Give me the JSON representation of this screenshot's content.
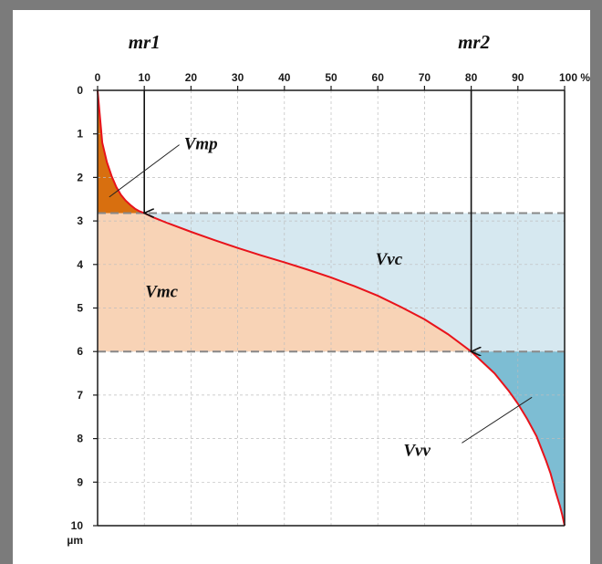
{
  "chart_data": {
    "type": "area",
    "x": [
      0,
      1,
      2,
      3,
      4,
      5,
      6,
      7,
      8,
      9,
      10,
      12,
      15,
      20,
      25,
      30,
      35,
      40,
      45,
      50,
      55,
      60,
      65,
      70,
      75,
      80,
      85,
      88,
      90,
      92,
      94,
      96,
      97,
      98,
      99,
      99.5,
      100
    ],
    "y": [
      0,
      1.2,
      1.65,
      1.97,
      2.22,
      2.4,
      2.53,
      2.63,
      2.72,
      2.78,
      2.82,
      2.92,
      3.05,
      3.25,
      3.44,
      3.62,
      3.79,
      3.95,
      4.12,
      4.3,
      4.5,
      4.72,
      4.98,
      5.26,
      5.6,
      6.0,
      6.5,
      6.9,
      7.2,
      7.55,
      7.95,
      8.5,
      8.8,
      9.2,
      9.55,
      9.75,
      10
    ],
    "x_ticks": [
      "0",
      "10",
      "20",
      "30",
      "40",
      "50",
      "60",
      "70",
      "80",
      "90",
      "100 %"
    ],
    "y_ticks": [
      "0",
      "1",
      "2",
      "3",
      "4",
      "5",
      "6",
      "7",
      "8",
      "9",
      "10"
    ],
    "y_unit": "µm",
    "xlim": [
      0,
      100
    ],
    "ylim": [
      0,
      10
    ],
    "y_inverted": true,
    "grid": true,
    "mr1": 10,
    "mr2": 80,
    "level_mr1": 2.82,
    "level_mr2": 6.0,
    "marker_labels": {
      "mr1": "mr1",
      "mr2": "mr2"
    },
    "regions": [
      {
        "label": "Vmp",
        "color": "#d86f0f"
      },
      {
        "label": "Vmc",
        "color": "#f8d3b6"
      },
      {
        "label": "Vvc",
        "color": "#d6e8f0"
      },
      {
        "label": "Vvv",
        "color": "#7dbdd3"
      }
    ],
    "curve_color": "#e8131b",
    "dashed_line_color": "#888888",
    "frame_color": "#7b7b7b"
  }
}
